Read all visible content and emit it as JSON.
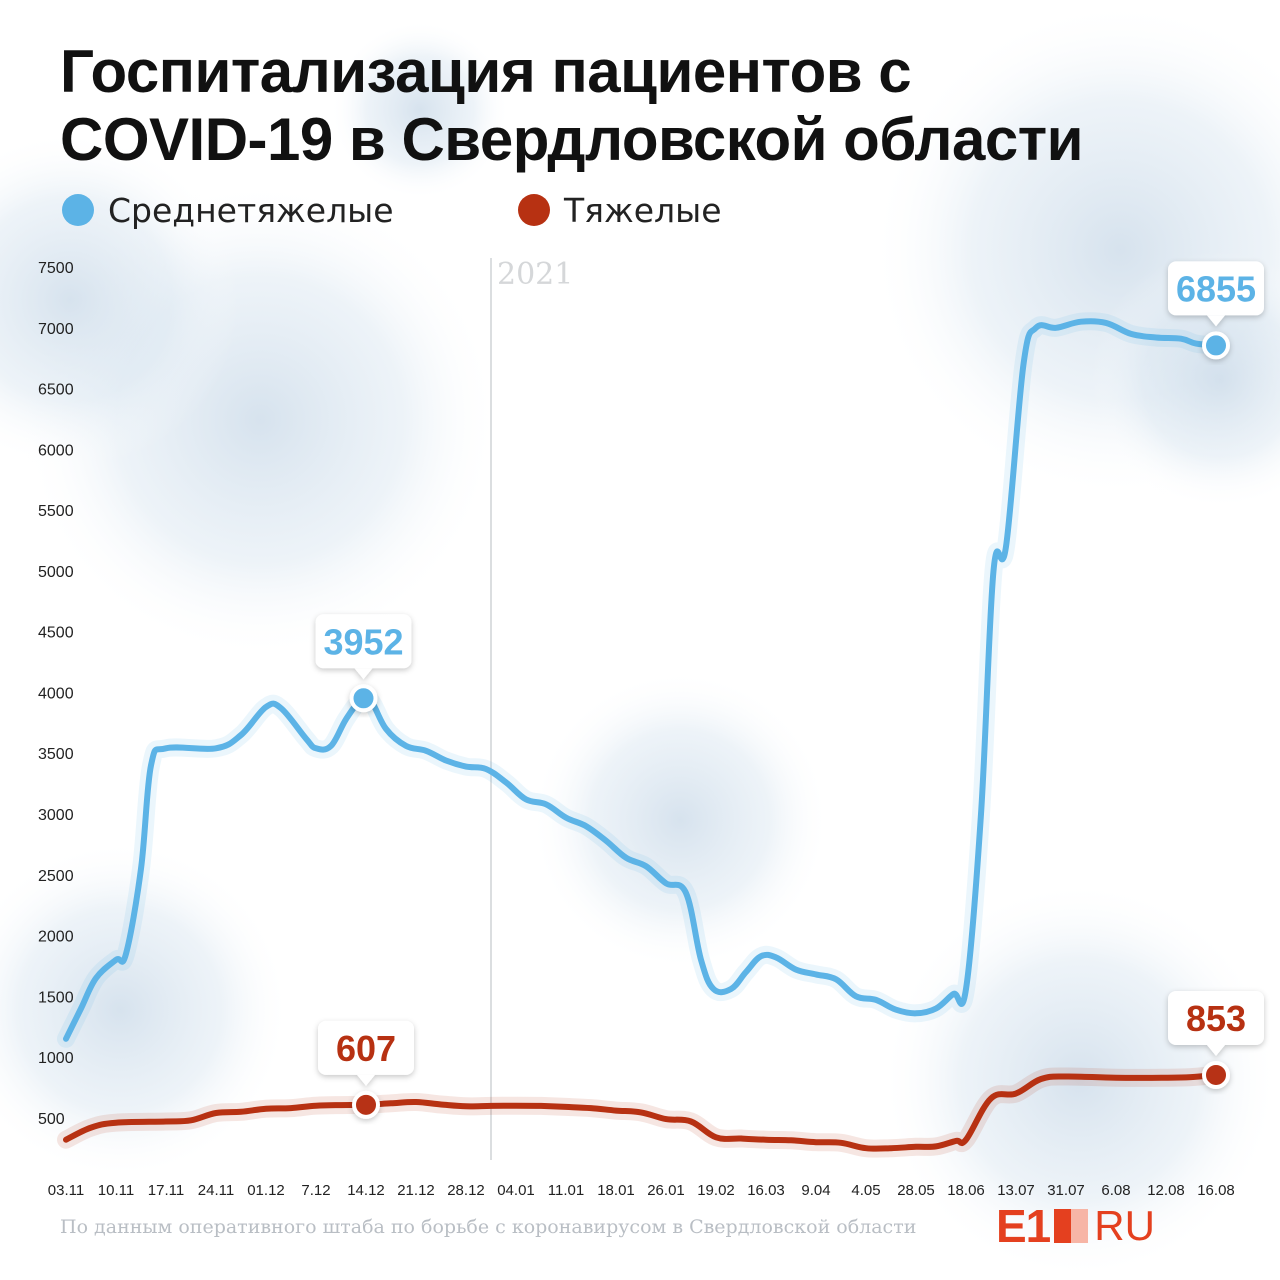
{
  "title_lines": [
    "Госпитализация пациентов с",
    "COVID-19 в Свердловской области"
  ],
  "legend": [
    {
      "label": "Среднетяжелые",
      "color": "#5cb3e6"
    },
    {
      "label": "Тяжелые",
      "color": "#b73112"
    }
  ],
  "chart_data": {
    "type": "line",
    "year_marker": {
      "label": "2021",
      "x_index": 8.5
    },
    "categories": [
      "03.11",
      "10.11",
      "17.11",
      "24.11",
      "01.12",
      "7.12",
      "14.12",
      "21.12",
      "28.12",
      "04.01",
      "11.01",
      "18.01",
      "26.01",
      "19.02",
      "16.03",
      "9.04",
      "4.05",
      "28.05",
      "18.06",
      "13.07",
      "31.07",
      "6.08",
      "12.08",
      "16.08"
    ],
    "y_ticks": [
      500,
      1000,
      1500,
      2000,
      2500,
      3000,
      3500,
      4000,
      4500,
      5000,
      5500,
      6000,
      6500,
      7000,
      7500
    ],
    "ylim": [
      300,
      7500
    ],
    "series": [
      {
        "name": "Среднетяжелые",
        "color": "#5cb3e6",
        "points": [
          [
            0,
            1150
          ],
          [
            0.3,
            1400
          ],
          [
            0.6,
            1650
          ],
          [
            1,
            1800
          ],
          [
            1.2,
            1850
          ],
          [
            1.5,
            2550
          ],
          [
            1.7,
            3400
          ],
          [
            2,
            3540
          ],
          [
            3,
            3540
          ],
          [
            3.5,
            3650
          ],
          [
            4,
            3880
          ],
          [
            4.3,
            3870
          ],
          [
            4.8,
            3620
          ],
          [
            5,
            3540
          ],
          [
            5.3,
            3560
          ],
          [
            5.6,
            3780
          ],
          [
            5.9,
            3940
          ],
          [
            6.1,
            3930
          ],
          [
            6.4,
            3700
          ],
          [
            6.8,
            3560
          ],
          [
            7.2,
            3520
          ],
          [
            7.6,
            3440
          ],
          [
            8,
            3390
          ],
          [
            8.4,
            3370
          ],
          [
            8.8,
            3260
          ],
          [
            9.2,
            3120
          ],
          [
            9.6,
            3080
          ],
          [
            10,
            2970
          ],
          [
            10.4,
            2900
          ],
          [
            10.8,
            2780
          ],
          [
            11.2,
            2640
          ],
          [
            11.6,
            2570
          ],
          [
            12,
            2430
          ],
          [
            12.4,
            2350
          ],
          [
            12.7,
            1800
          ],
          [
            12.95,
            1560
          ],
          [
            13.3,
            1560
          ],
          [
            13.6,
            1700
          ],
          [
            13.9,
            1830
          ],
          [
            14.2,
            1820
          ],
          [
            14.6,
            1720
          ],
          [
            15,
            1680
          ],
          [
            15.4,
            1640
          ],
          [
            15.8,
            1500
          ],
          [
            16.2,
            1470
          ],
          [
            16.6,
            1390
          ],
          [
            17,
            1360
          ],
          [
            17.4,
            1400
          ],
          [
            17.75,
            1520
          ],
          [
            18,
            1560
          ],
          [
            18.3,
            3000
          ],
          [
            18.55,
            5000
          ],
          [
            18.8,
            5200
          ],
          [
            19.15,
            6700
          ],
          [
            19.4,
            7000
          ],
          [
            19.8,
            7000
          ],
          [
            20.3,
            7050
          ],
          [
            20.8,
            7040
          ],
          [
            21.3,
            6950
          ],
          [
            21.8,
            6920
          ],
          [
            22.3,
            6910
          ],
          [
            22.6,
            6870
          ],
          [
            23,
            6855
          ]
        ],
        "callouts": [
          {
            "x_index": 5.95,
            "value": 3952,
            "label": "3952"
          },
          {
            "x_index": 23,
            "value": 6855,
            "label": "6855"
          }
        ]
      },
      {
        "name": "Тяжелые",
        "color": "#b73112",
        "points": [
          [
            0,
            320
          ],
          [
            0.5,
            420
          ],
          [
            1,
            460
          ],
          [
            2,
            470
          ],
          [
            2.5,
            480
          ],
          [
            3,
            540
          ],
          [
            3.5,
            550
          ],
          [
            4,
            575
          ],
          [
            4.5,
            580
          ],
          [
            5,
            600
          ],
          [
            5.5,
            605
          ],
          [
            6,
            607
          ],
          [
            6.5,
            620
          ],
          [
            7,
            630
          ],
          [
            7.5,
            610
          ],
          [
            8,
            595
          ],
          [
            8.5,
            598
          ],
          [
            9,
            600
          ],
          [
            9.5,
            598
          ],
          [
            10,
            590
          ],
          [
            10.5,
            580
          ],
          [
            11,
            560
          ],
          [
            11.5,
            545
          ],
          [
            12,
            490
          ],
          [
            12.5,
            470
          ],
          [
            13,
            340
          ],
          [
            13.5,
            330
          ],
          [
            14,
            320
          ],
          [
            14.5,
            315
          ],
          [
            15,
            300
          ],
          [
            15.5,
            295
          ],
          [
            16,
            250
          ],
          [
            16.5,
            250
          ],
          [
            17,
            262
          ],
          [
            17.4,
            265
          ],
          [
            17.8,
            310
          ],
          [
            18,
            320
          ],
          [
            18.5,
            660
          ],
          [
            19,
            700
          ],
          [
            19.5,
            820
          ],
          [
            20,
            840
          ],
          [
            21,
            830
          ],
          [
            22,
            830
          ],
          [
            22.5,
            835
          ],
          [
            23,
            853
          ]
        ],
        "callouts": [
          {
            "x_index": 6,
            "value": 607,
            "label": "607"
          },
          {
            "x_index": 23,
            "value": 853,
            "label": "853"
          }
        ]
      }
    ]
  },
  "source_note": "По данным оперативного штаба по борьбе с коронавирусом в Свердловской области",
  "logo": {
    "e1": "E1",
    "ru": "RU"
  }
}
